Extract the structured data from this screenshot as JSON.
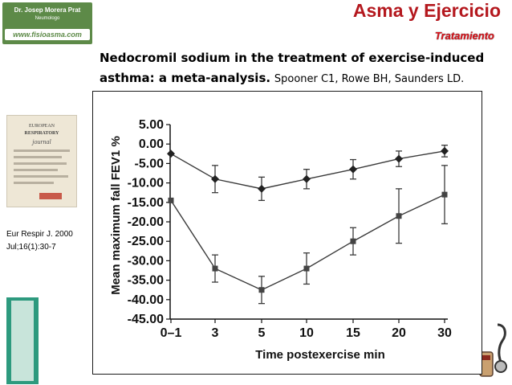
{
  "header": {
    "logo_name": "Dr. Josep Morera Prat",
    "logo_role": "Neumologo",
    "logo_site": "www.fisioasma.com",
    "title": "Asma y Ejercicio",
    "subtitle": "Tratamiento"
  },
  "paper": {
    "title_line1": "Nedocromil sodium in the treatment of exercise-induced",
    "title_line2": "asthma: a meta-analysis.",
    "authors": "Spooner C1, Rowe BH, Saunders LD."
  },
  "journal": {
    "cover_line1": "EUROPEAN",
    "cover_line2": "RESPIRATORY",
    "cover_line3": "journal",
    "citation_line1": "Eur Respir J. 2000",
    "citation_line2": "Jul;16(1):30-7"
  },
  "colors": {
    "title_red": "#b4181e",
    "subtitle_red": "#d8141c",
    "logo_green": "#5d8a48",
    "series_color": "#3a3a3a"
  },
  "chart_data": {
    "type": "line",
    "xlabel": "Time postexercise min",
    "ylabel": "Mean maximum fall FEV1 %",
    "categories": [
      "0–1",
      "3",
      "5",
      "10",
      "15",
      "20",
      "30"
    ],
    "y_ticks": [
      "5.00",
      "0.00",
      "-5.00",
      "-10.00",
      "-15.00",
      "-20.00",
      "-25.00",
      "-30.00",
      "-35.00",
      "-40.00",
      "-45.00"
    ],
    "ylim": [
      -45,
      5
    ],
    "grid": false,
    "series": [
      {
        "marker": "diamond",
        "values": [
          -2.5,
          -9.0,
          -11.5,
          -9.0,
          -6.5,
          -3.8,
          -1.8
        ],
        "error": [
          0,
          3.5,
          3.0,
          2.5,
          2.5,
          2.0,
          1.5
        ]
      },
      {
        "marker": "square",
        "values": [
          -14.5,
          -32.0,
          -37.5,
          -32.0,
          -25.0,
          -18.5,
          -13.0
        ],
        "error": [
          0,
          3.5,
          3.5,
          4.0,
          3.5,
          7.0,
          7.5
        ]
      }
    ]
  }
}
